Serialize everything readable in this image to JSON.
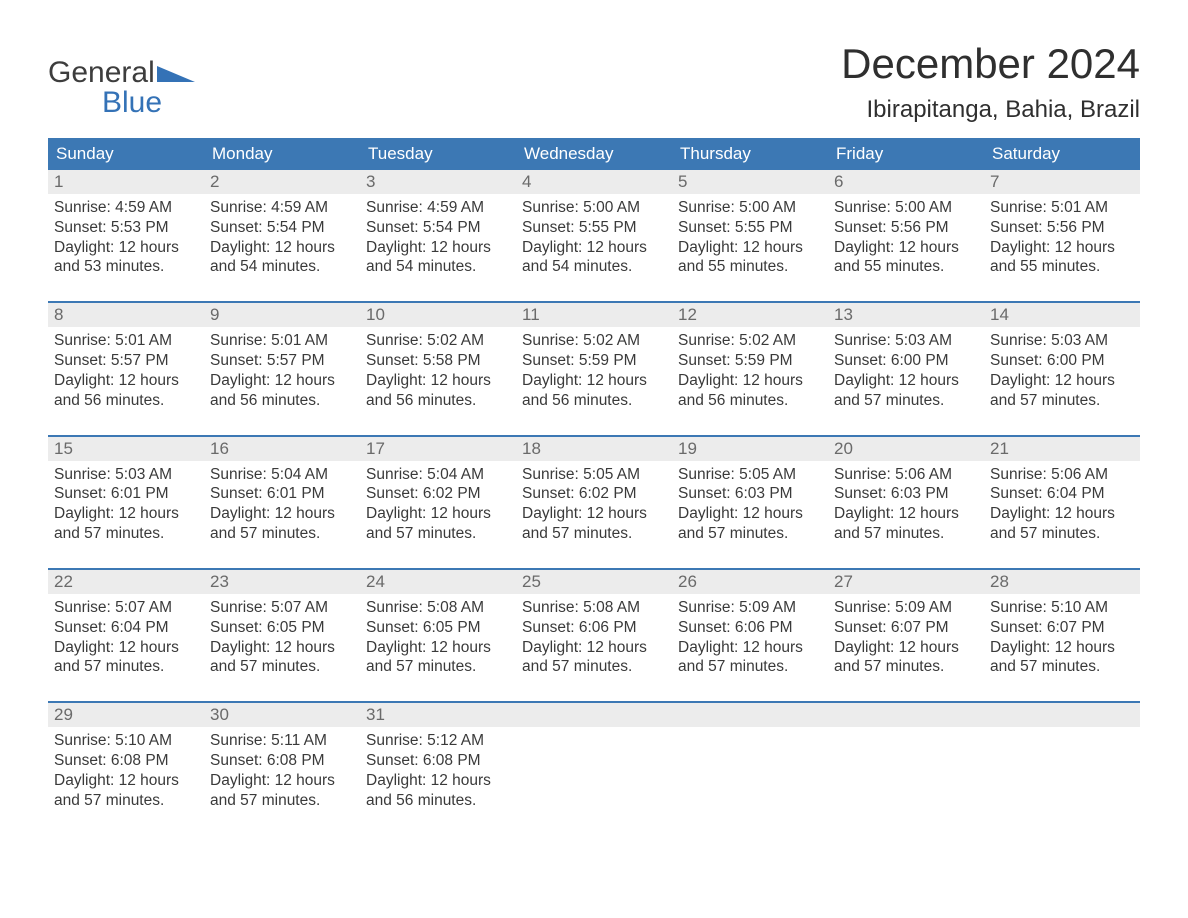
{
  "logo": {
    "line1": "General",
    "line2": "Blue"
  },
  "title": "December 2024",
  "location": "Ibirapitanga, Bahia, Brazil",
  "colors": {
    "header_bg": "#3c78b4",
    "header_text": "#ffffff",
    "daynum_bg": "#ececec",
    "daynum_text": "#6a6a6a",
    "body_text": "#3a3a3a",
    "accent": "#3472b6",
    "background": "#ffffff"
  },
  "typography": {
    "title_fontsize": 42,
    "location_fontsize": 24,
    "header_fontsize": 17,
    "daynum_fontsize": 17,
    "body_fontsize": 15.5
  },
  "layout": {
    "columns": 7,
    "rows": 5,
    "week_border_top": "2px solid #3c78b4"
  },
  "weekday_headers": [
    "Sunday",
    "Monday",
    "Tuesday",
    "Wednesday",
    "Thursday",
    "Friday",
    "Saturday"
  ],
  "labels": {
    "sunrise": "Sunrise:",
    "sunset": "Sunset:",
    "daylight": "Daylight:"
  },
  "weeks": [
    [
      {
        "day": "1",
        "sunrise": "4:59 AM",
        "sunset": "5:53 PM",
        "daylight": "12 hours and 53 minutes."
      },
      {
        "day": "2",
        "sunrise": "4:59 AM",
        "sunset": "5:54 PM",
        "daylight": "12 hours and 54 minutes."
      },
      {
        "day": "3",
        "sunrise": "4:59 AM",
        "sunset": "5:54 PM",
        "daylight": "12 hours and 54 minutes."
      },
      {
        "day": "4",
        "sunrise": "5:00 AM",
        "sunset": "5:55 PM",
        "daylight": "12 hours and 54 minutes."
      },
      {
        "day": "5",
        "sunrise": "5:00 AM",
        "sunset": "5:55 PM",
        "daylight": "12 hours and 55 minutes."
      },
      {
        "day": "6",
        "sunrise": "5:00 AM",
        "sunset": "5:56 PM",
        "daylight": "12 hours and 55 minutes."
      },
      {
        "day": "7",
        "sunrise": "5:01 AM",
        "sunset": "5:56 PM",
        "daylight": "12 hours and 55 minutes."
      }
    ],
    [
      {
        "day": "8",
        "sunrise": "5:01 AM",
        "sunset": "5:57 PM",
        "daylight": "12 hours and 56 minutes."
      },
      {
        "day": "9",
        "sunrise": "5:01 AM",
        "sunset": "5:57 PM",
        "daylight": "12 hours and 56 minutes."
      },
      {
        "day": "10",
        "sunrise": "5:02 AM",
        "sunset": "5:58 PM",
        "daylight": "12 hours and 56 minutes."
      },
      {
        "day": "11",
        "sunrise": "5:02 AM",
        "sunset": "5:59 PM",
        "daylight": "12 hours and 56 minutes."
      },
      {
        "day": "12",
        "sunrise": "5:02 AM",
        "sunset": "5:59 PM",
        "daylight": "12 hours and 56 minutes."
      },
      {
        "day": "13",
        "sunrise": "5:03 AM",
        "sunset": "6:00 PM",
        "daylight": "12 hours and 57 minutes."
      },
      {
        "day": "14",
        "sunrise": "5:03 AM",
        "sunset": "6:00 PM",
        "daylight": "12 hours and 57 minutes."
      }
    ],
    [
      {
        "day": "15",
        "sunrise": "5:03 AM",
        "sunset": "6:01 PM",
        "daylight": "12 hours and 57 minutes."
      },
      {
        "day": "16",
        "sunrise": "5:04 AM",
        "sunset": "6:01 PM",
        "daylight": "12 hours and 57 minutes."
      },
      {
        "day": "17",
        "sunrise": "5:04 AM",
        "sunset": "6:02 PM",
        "daylight": "12 hours and 57 minutes."
      },
      {
        "day": "18",
        "sunrise": "5:05 AM",
        "sunset": "6:02 PM",
        "daylight": "12 hours and 57 minutes."
      },
      {
        "day": "19",
        "sunrise": "5:05 AM",
        "sunset": "6:03 PM",
        "daylight": "12 hours and 57 minutes."
      },
      {
        "day": "20",
        "sunrise": "5:06 AM",
        "sunset": "6:03 PM",
        "daylight": "12 hours and 57 minutes."
      },
      {
        "day": "21",
        "sunrise": "5:06 AM",
        "sunset": "6:04 PM",
        "daylight": "12 hours and 57 minutes."
      }
    ],
    [
      {
        "day": "22",
        "sunrise": "5:07 AM",
        "sunset": "6:04 PM",
        "daylight": "12 hours and 57 minutes."
      },
      {
        "day": "23",
        "sunrise": "5:07 AM",
        "sunset": "6:05 PM",
        "daylight": "12 hours and 57 minutes."
      },
      {
        "day": "24",
        "sunrise": "5:08 AM",
        "sunset": "6:05 PM",
        "daylight": "12 hours and 57 minutes."
      },
      {
        "day": "25",
        "sunrise": "5:08 AM",
        "sunset": "6:06 PM",
        "daylight": "12 hours and 57 minutes."
      },
      {
        "day": "26",
        "sunrise": "5:09 AM",
        "sunset": "6:06 PM",
        "daylight": "12 hours and 57 minutes."
      },
      {
        "day": "27",
        "sunrise": "5:09 AM",
        "sunset": "6:07 PM",
        "daylight": "12 hours and 57 minutes."
      },
      {
        "day": "28",
        "sunrise": "5:10 AM",
        "sunset": "6:07 PM",
        "daylight": "12 hours and 57 minutes."
      }
    ],
    [
      {
        "day": "29",
        "sunrise": "5:10 AM",
        "sunset": "6:08 PM",
        "daylight": "12 hours and 57 minutes."
      },
      {
        "day": "30",
        "sunrise": "5:11 AM",
        "sunset": "6:08 PM",
        "daylight": "12 hours and 57 minutes."
      },
      {
        "day": "31",
        "sunrise": "5:12 AM",
        "sunset": "6:08 PM",
        "daylight": "12 hours and 56 minutes."
      },
      null,
      null,
      null,
      null
    ]
  ]
}
